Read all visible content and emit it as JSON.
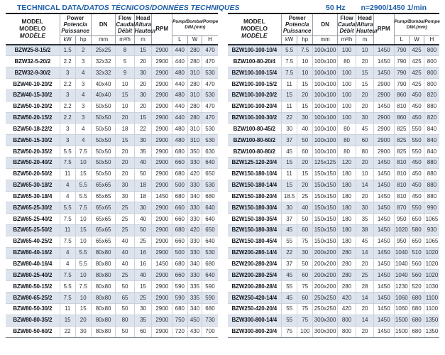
{
  "page": {
    "title_main": "TECHNICAL DATA",
    "title_rest": "/DATOS TÉCNICOS/DONNÉES TECHNIQUES",
    "freq_label": "50 Hz",
    "speed_label": "n=2900/1450 1/min"
  },
  "colors": {
    "accent_blue": "#1d5fa8",
    "row_shade": "#dee4ee"
  },
  "table_header": {
    "model": [
      "MODEL",
      "MODELO",
      "MODÈLE"
    ],
    "power": [
      "Power",
      "Potencia",
      "Puissance"
    ],
    "dn": "DN",
    "flow": [
      "Flow",
      "Caudal",
      "Débit"
    ],
    "head": [
      "Head",
      "Altura",
      "Hauteur"
    ],
    "rpm": "RPM",
    "pump_dim_line1": "Pump/Bomba/Pompe",
    "pump_dim_line2": "DIM.(mm)",
    "units": {
      "kw": "kW",
      "hp": "hp",
      "mm": "mm",
      "flow": "m³/h",
      "head": "m",
      "l": "L",
      "w": "W",
      "h": "H"
    }
  },
  "left_table_rows": [
    [
      "BZW25-8-15/2",
      "1.5",
      "2",
      "25x25",
      "8",
      "15",
      "2900",
      "440",
      "280",
      "470"
    ],
    [
      "BZW32-5-20/2",
      "2.2",
      "3",
      "32x32",
      "5",
      "20",
      "2900",
      "440",
      "280",
      "470"
    ],
    [
      "BZW32-9-30/2",
      "3",
      "4",
      "32x32",
      "9",
      "30",
      "2900",
      "480",
      "310",
      "530"
    ],
    [
      "BZW40-10-20/2",
      "2.2",
      "3",
      "40x40",
      "10",
      "20",
      "2900",
      "440",
      "280",
      "470"
    ],
    [
      "BZW40-15-30/2",
      "3",
      "4",
      "40x40",
      "15",
      "30",
      "2900",
      "480",
      "310",
      "530"
    ],
    [
      "BZW50-10-20/2",
      "2.2",
      "3",
      "50x50",
      "10",
      "20",
      "2900",
      "440",
      "280",
      "470"
    ],
    [
      "BZW50-20-15/2",
      "2.2",
      "3",
      "50x50",
      "20",
      "15",
      "2900",
      "440",
      "280",
      "470"
    ],
    [
      "BZW50-18-22/2",
      "3",
      "4",
      "50x50",
      "18",
      "22",
      "2900",
      "480",
      "310",
      "530"
    ],
    [
      "BZW50-15-30/2",
      "3",
      "4",
      "50x50",
      "15",
      "30",
      "2900",
      "480",
      "310",
      "530"
    ],
    [
      "BZW50-20-35/2",
      "5.5",
      "7.5",
      "50x50",
      "20",
      "35",
      "2900",
      "680",
      "350",
      "630"
    ],
    [
      "BZW50-20-40/2",
      "7.5",
      "10",
      "50x50",
      "20",
      "40",
      "2900",
      "660",
      "330",
      "640"
    ],
    [
      "BZW50-20-50/2",
      "11",
      "15",
      "50x50",
      "20",
      "50",
      "2900",
      "680",
      "420",
      "650"
    ],
    [
      "BZW65-30-18/2",
      "4",
      "5.5",
      "65x65",
      "30",
      "18",
      "2900",
      "500",
      "330",
      "530"
    ],
    [
      "BZW65-30-18/4",
      "4",
      "5.5",
      "65x65",
      "30",
      "18",
      "1450",
      "680",
      "340",
      "680"
    ],
    [
      "BZW65-25-30/2",
      "5.5",
      "7.5",
      "65x65",
      "25",
      "30",
      "2900",
      "660",
      "330",
      "640"
    ],
    [
      "BZW65-25-40/2",
      "7.5",
      "10",
      "65x65",
      "25",
      "40",
      "2900",
      "660",
      "330",
      "640"
    ],
    [
      "BZW65-25-50/2",
      "11",
      "15",
      "65x65",
      "25",
      "50",
      "2900",
      "680",
      "420",
      "650"
    ],
    [
      "BZW65-40-25/2",
      "7.5",
      "10",
      "65x65",
      "40",
      "25",
      "2900",
      "660",
      "330",
      "640"
    ],
    [
      "BZW80-40-16/2",
      "4",
      "5.5",
      "80x80",
      "40",
      "16",
      "2900",
      "500",
      "330",
      "530"
    ],
    [
      "BZW80-40-16/4",
      "4",
      "5.5",
      "80x80",
      "40",
      "16",
      "1450",
      "680",
      "340",
      "680"
    ],
    [
      "BZW80-25-40/2",
      "7.5",
      "10",
      "80x80",
      "25",
      "40",
      "2900",
      "660",
      "330",
      "640"
    ],
    [
      "BZW80-50-15/2",
      "5.5",
      "7.5",
      "80x80",
      "50",
      "15",
      "2900",
      "590",
      "335",
      "590"
    ],
    [
      "BZW80-65-25/2",
      "7.5",
      "10",
      "80x80",
      "65",
      "25",
      "2900",
      "590",
      "335",
      "590"
    ],
    [
      "BZW80-50-30/2",
      "11",
      "15",
      "80x80",
      "50",
      "30",
      "2900",
      "680",
      "340",
      "680"
    ],
    [
      "BZW80-80-35/2",
      "15",
      "20",
      "80x80",
      "80",
      "35",
      "2900",
      "750",
      "450",
      "730"
    ],
    [
      "BZW80-50-60/2",
      "22",
      "30",
      "80x80",
      "50",
      "60",
      "2900",
      "720",
      "430",
      "700"
    ]
  ],
  "right_table_rows": [
    [
      "BZW100-100-10/4",
      "5.5",
      "7.5",
      "100x100",
      "100",
      "10",
      "1450",
      "790",
      "425",
      "800"
    ],
    [
      "BZW100-80-20/4",
      "7.5",
      "10",
      "100x100",
      "80",
      "20",
      "1450",
      "790",
      "425",
      "800"
    ],
    [
      "BZW100-100-15/4",
      "7.5",
      "10",
      "100x100",
      "100",
      "15",
      "1450",
      "790",
      "425",
      "800"
    ],
    [
      "BZW100-100-15/2",
      "11",
      "15",
      "100x100",
      "100",
      "15",
      "2900",
      "790",
      "425",
      "800"
    ],
    [
      "BZW100-100-20/2",
      "15",
      "20",
      "100x100",
      "100",
      "20",
      "2900",
      "860",
      "450",
      "820"
    ],
    [
      "BZW100-100-20/4",
      "11",
      "15",
      "100x100",
      "100",
      "20",
      "1450",
      "810",
      "450",
      "880"
    ],
    [
      "BZW100-100-30/2",
      "22",
      "30",
      "100x100",
      "100",
      "30",
      "2900",
      "860",
      "450",
      "820"
    ],
    [
      "BZW100-80-45/2",
      "30",
      "40",
      "100x100",
      "80",
      "45",
      "2900",
      "825",
      "550",
      "840"
    ],
    [
      "BZW100-80-60/2",
      "37",
      "50",
      "100x100",
      "80",
      "60",
      "2900",
      "825",
      "550",
      "840"
    ],
    [
      "BZW100-80-80/2",
      "45",
      "60",
      "100x100",
      "80",
      "80",
      "2900",
      "825",
      "550",
      "840"
    ],
    [
      "BZW125-120-20/4",
      "15",
      "20",
      "125x125",
      "120",
      "20",
      "1450",
      "810",
      "450",
      "880"
    ],
    [
      "BZW150-180-10/4",
      "11",
      "15",
      "150x150",
      "180",
      "10",
      "1450",
      "810",
      "450",
      "880"
    ],
    [
      "BZW150-180-14/4",
      "15",
      "20",
      "150x150",
      "180",
      "14",
      "1450",
      "810",
      "450",
      "880"
    ],
    [
      "BZW150-180-20/4",
      "18.5",
      "25",
      "150x150",
      "180",
      "20",
      "1450",
      "810",
      "450",
      "880"
    ],
    [
      "BZW150-180-30/4",
      "30",
      "40",
      "150x150",
      "180",
      "30",
      "1450",
      "870",
      "550",
      "990"
    ],
    [
      "BZW150-180-35/4",
      "37",
      "50",
      "150x150",
      "180",
      "35",
      "1450",
      "950",
      "650",
      "1065"
    ],
    [
      "BZW150-180-38/4",
      "45",
      "60",
      "150x150",
      "180",
      "38",
      "1450",
      "1020",
      "580",
      "930"
    ],
    [
      "BZW150-180-45/4",
      "55",
      "75",
      "150x150",
      "180",
      "45",
      "1450",
      "950",
      "650",
      "1065"
    ],
    [
      "BZW200-280-14/4",
      "22",
      "30",
      "200x200",
      "280",
      "14",
      "1450",
      "1040",
      "510",
      "1020"
    ],
    [
      "BZW200-280-20/4",
      "37",
      "50",
      "200x200",
      "280",
      "20",
      "1450",
      "1040",
      "560",
      "1020"
    ],
    [
      "BZW200-280-25/4",
      "45",
      "60",
      "200x200",
      "280",
      "25",
      "1450",
      "1040",
      "560",
      "1020"
    ],
    [
      "BZW200-280-28/4",
      "55",
      "75",
      "200x200",
      "280",
      "28",
      "1450",
      "1230",
      "520",
      "1030"
    ],
    [
      "BZW250-420-14/4",
      "45",
      "60",
      "250x250",
      "420",
      "14",
      "1450",
      "1060",
      "680",
      "1100"
    ],
    [
      "BZW250-420-20/4",
      "55",
      "75",
      "250x250",
      "420",
      "20",
      "1450",
      "1060",
      "680",
      "1100"
    ],
    [
      "BZW300-800-14/4",
      "55",
      "75",
      "300x300",
      "800",
      "14",
      "1450",
      "1500",
      "680",
      "1350"
    ],
    [
      "BZW300-800-20/4",
      "75",
      "100",
      "300x300",
      "800",
      "20",
      "1450",
      "1500",
      "680",
      "1350"
    ]
  ]
}
